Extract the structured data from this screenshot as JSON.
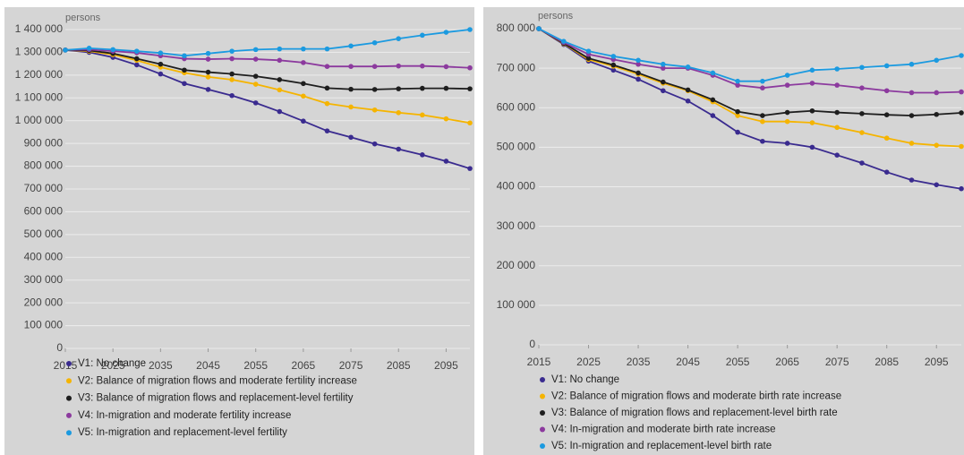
{
  "chart_data": [
    {
      "type": "line",
      "y_label": "persons",
      "x": [
        2015,
        2020,
        2025,
        2030,
        2035,
        2040,
        2045,
        2050,
        2055,
        2060,
        2065,
        2070,
        2075,
        2080,
        2085,
        2090,
        2095,
        2100
      ],
      "xlim": [
        2015,
        2100
      ],
      "xticks": [
        2015,
        2025,
        2035,
        2045,
        2055,
        2065,
        2075,
        2085,
        2095
      ],
      "ylim": [
        0,
        1400000
      ],
      "yticks": [
        0,
        {
          "value": 100000,
          "label": "100 000"
        },
        {
          "value": 200000,
          "label": "200 000"
        },
        {
          "value": 300000,
          "label": "300 000"
        },
        {
          "value": 400000,
          "label": "400 000"
        },
        {
          "value": 500000,
          "label": "500 000"
        },
        {
          "value": 600000,
          "label": "600 000"
        },
        {
          "value": 700000,
          "label": "700 000"
        },
        {
          "value": 800000,
          "label": "800 000"
        },
        {
          "value": 900000,
          "label": "900 000"
        },
        {
          "value": 1000000,
          "label": "1 000 000"
        },
        {
          "value": 1100000,
          "label": "1 100 000"
        },
        {
          "value": 1200000,
          "label": "1 200 000"
        },
        {
          "value": 1300000,
          "label": "1 300 000"
        },
        {
          "value": 1400000,
          "label": "1 400 000"
        }
      ],
      "grid": true,
      "series": [
        {
          "name": "V1: No change",
          "color": "#3a2b8f",
          "values": [
            1310000,
            1300000,
            1278000,
            1245000,
            1205000,
            1163000,
            1137000,
            1110000,
            1078000,
            1040000,
            998000,
            955000,
            927000,
            898000,
            875000,
            850000,
            822000,
            790000
          ]
        },
        {
          "name": "V2: Balance of migration flows and moderate fertility increase",
          "color": "#f5b400",
          "values": [
            1310000,
            1305000,
            1290000,
            1265000,
            1235000,
            1210000,
            1192000,
            1180000,
            1160000,
            1135000,
            1108000,
            1075000,
            1060000,
            1047000,
            1035000,
            1025000,
            1008000,
            990000
          ]
        },
        {
          "name": "V3: Balance of migration flows and replacement-level fertility",
          "color": "#1e1e1e",
          "values": [
            1310000,
            1308000,
            1295000,
            1272000,
            1248000,
            1222000,
            1213000,
            1205000,
            1195000,
            1180000,
            1163000,
            1143000,
            1138000,
            1137000,
            1140000,
            1142000,
            1142000,
            1140000
          ]
        },
        {
          "name": "V4: In-migration and moderate fertility increase",
          "color": "#8c3a9e",
          "values": [
            1310000,
            1312000,
            1305000,
            1298000,
            1285000,
            1272000,
            1270000,
            1272000,
            1270000,
            1265000,
            1255000,
            1238000,
            1238000,
            1238000,
            1240000,
            1240000,
            1237000,
            1232000
          ]
        },
        {
          "name": "V5: In-migration and replacement-level fertility",
          "color": "#1b9ae0",
          "values": [
            1310000,
            1318000,
            1312000,
            1305000,
            1297000,
            1285000,
            1295000,
            1305000,
            1312000,
            1315000,
            1315000,
            1315000,
            1328000,
            1342000,
            1360000,
            1375000,
            1388000,
            1400000
          ]
        }
      ]
    },
    {
      "type": "line",
      "y_label": "persons",
      "x": [
        2015,
        2020,
        2025,
        2030,
        2035,
        2040,
        2045,
        2050,
        2055,
        2060,
        2065,
        2070,
        2075,
        2080,
        2085,
        2090,
        2095,
        2100
      ],
      "xlim": [
        2015,
        2100
      ],
      "xticks": [
        2015,
        2025,
        2035,
        2045,
        2055,
        2065,
        2075,
        2085,
        2095
      ],
      "ylim": [
        0,
        800000
      ],
      "yticks": [
        0,
        {
          "value": 100000,
          "label": "100 000"
        },
        {
          "value": 200000,
          "label": "200 000"
        },
        {
          "value": 300000,
          "label": "300 000"
        },
        {
          "value": 400000,
          "label": "400 000"
        },
        {
          "value": 500000,
          "label": "500 000"
        },
        {
          "value": 600000,
          "label": "600 000"
        },
        {
          "value": 700000,
          "label": "700 000"
        },
        {
          "value": 800000,
          "label": "800 000"
        }
      ],
      "grid": true,
      "series": [
        {
          "name": "V1: No change",
          "color": "#3a2b8f",
          "values": [
            800000,
            760000,
            718000,
            695000,
            672000,
            643000,
            617000,
            580000,
            538000,
            515000,
            510000,
            500000,
            480000,
            460000,
            437000,
            417000,
            405000,
            395000
          ]
        },
        {
          "name": "V2: Balance of migration flows and moderate birth rate increase",
          "color": "#f5b400",
          "values": [
            800000,
            762000,
            722000,
            705000,
            685000,
            662000,
            643000,
            615000,
            580000,
            565000,
            565000,
            562000,
            550000,
            537000,
            523000,
            510000,
            505000,
            502000
          ]
        },
        {
          "name": "V3: Balance of migration flows and replacement-level birth rate",
          "color": "#1e1e1e",
          "values": [
            800000,
            763000,
            725000,
            708000,
            688000,
            665000,
            645000,
            620000,
            590000,
            580000,
            588000,
            592000,
            588000,
            585000,
            582000,
            580000,
            583000,
            587000
          ]
        },
        {
          "name": "V4: In-migration and moderate birth rate increase",
          "color": "#8c3a9e",
          "values": [
            800000,
            765000,
            735000,
            722000,
            710000,
            700000,
            700000,
            682000,
            657000,
            650000,
            657000,
            662000,
            657000,
            650000,
            643000,
            638000,
            638000,
            640000
          ]
        },
        {
          "name": "V5: In-migration and replacement-level birth rate",
          "color": "#1b9ae0",
          "values": [
            800000,
            768000,
            743000,
            730000,
            720000,
            710000,
            703000,
            688000,
            667000,
            667000,
            682000,
            695000,
            698000,
            702000,
            706000,
            710000,
            720000,
            732000
          ]
        }
      ]
    }
  ]
}
